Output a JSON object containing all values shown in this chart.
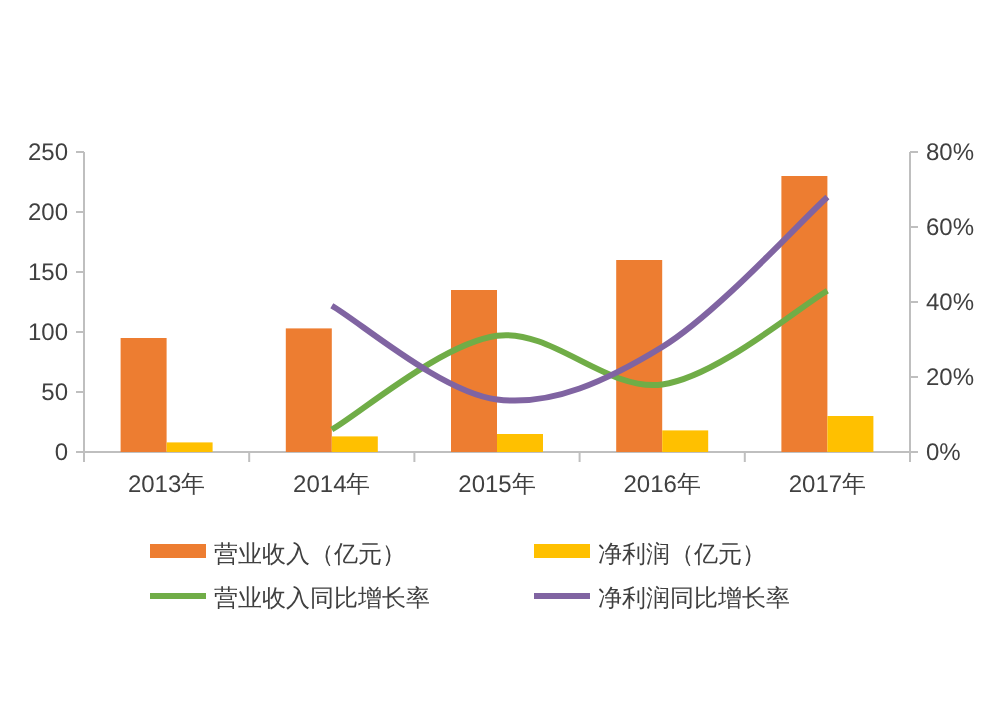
{
  "chart_data": {
    "type": "bar",
    "categories": [
      "2013年",
      "2014年",
      "2015年",
      "2016年",
      "2017年"
    ],
    "series": [
      {
        "name": "营业收入（亿元）",
        "color": "#ed7d31",
        "values": [
          95,
          103,
          135,
          160,
          230
        ]
      },
      {
        "name": "净利润（亿元）",
        "color": "#ffc000",
        "values": [
          8,
          13,
          15,
          18,
          30
        ]
      },
      {
        "name": "营业收入同比增长率",
        "type": "line",
        "axis": "y2",
        "color": "#70ad47",
        "values": [
          null,
          6,
          31,
          18,
          43
        ]
      },
      {
        "name": "净利润同比增长率",
        "type": "line",
        "axis": "y2",
        "color": "#8064a2",
        "values": [
          null,
          39,
          14,
          28,
          68
        ]
      }
    ],
    "ylim": [
      0,
      250
    ],
    "yticks": [
      0,
      50,
      100,
      150,
      200,
      250
    ],
    "y2lim": [
      0,
      80
    ],
    "y2ticks": [
      {
        "value": 0,
        "label": "0%"
      },
      {
        "value": 20,
        "label": "20%"
      },
      {
        "value": 40,
        "label": "40%"
      },
      {
        "value": 60,
        "label": "60%"
      },
      {
        "value": 80,
        "label": "80%"
      }
    ],
    "legend": "bottom"
  }
}
